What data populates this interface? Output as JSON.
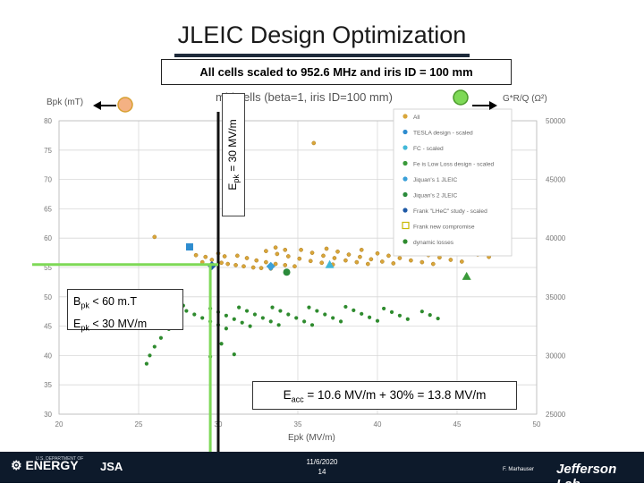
{
  "slide": {
    "title": "JLEIC Design Optimization",
    "subtitle": "All cells scaled to 952.6 MHz and iris ID = 100 mm",
    "epk_label_main": "E",
    "epk_label_sub": "pk",
    "epk_label_rest": " = 30 MV/m",
    "conditions": {
      "b_main": "B",
      "b_sub": "pk",
      "b_rest": " < 60 m.T",
      "e_main": "E",
      "e_sub": "pk",
      "e_rest": " < 30 MV/m"
    },
    "eacc": {
      "main": "E",
      "sub": "acc",
      "rest": " = 10.6 MV/m + 30% = 13.8 MV/m"
    },
    "footer": {
      "date": "11/6/2020",
      "page": "14",
      "author": "F. Marhauser",
      "doe_text": "ENERGY",
      "doe_dept": "U.S. DEPARTMENT OF",
      "jsa": "JSA",
      "jlab": "Jefferson Lab"
    },
    "colors": {
      "title_rule": "#1e2a3a",
      "footer_bg": "#0d1a2b",
      "green_line": "#7ed957",
      "black_line": "#111111"
    }
  },
  "chart_data": {
    "type": "scatter",
    "title": "mid cells (beta=1, iris ID=100 mm)",
    "ylabel_left": "Bpk (mT)",
    "ylabel_right": "G*R/Q (Ω²)",
    "xlabel": "Epk (MV/m)",
    "xlim": [
      20,
      50
    ],
    "ylim_left": [
      30,
      80
    ],
    "ylim_right": [
      25000,
      50000
    ],
    "x_ticks": [
      "20",
      "25",
      "30",
      "35",
      "40",
      "45",
      "50"
    ],
    "y_left_ticks": [
      "80",
      "75",
      "70",
      "65",
      "60",
      "55",
      "50",
      "45",
      "40",
      "35",
      "30"
    ],
    "y_right_ticks": [
      "50000",
      "45000",
      "40000",
      "35000",
      "30000",
      "25000"
    ],
    "legend": {
      "placement": "top-right",
      "entries": [
        "All",
        "TESLA design - scaled",
        "FC - scaled",
        "Fe is Low Loss design - scaled",
        "Jiquan's 1 JLEIC",
        "Jiquan's 2 JLEIC",
        "Frank \"LHeC\" study - scaled",
        "Frank new compromise",
        "dynamic losses"
      ]
    },
    "series": [
      {
        "name": "All",
        "color": "#d9a63a",
        "points": [
          [
            30.2,
            55.8
          ],
          [
            30.6,
            55.6
          ],
          [
            31.1,
            55.4
          ],
          [
            31.6,
            55.2
          ],
          [
            32.2,
            55.0
          ],
          [
            32.7,
            54.9
          ],
          [
            33.3,
            54.8
          ],
          [
            31.2,
            57.0
          ],
          [
            31.8,
            56.6
          ],
          [
            32.4,
            56.2
          ],
          [
            33.0,
            55.9
          ],
          [
            33.6,
            55.6
          ],
          [
            34.2,
            55.4
          ],
          [
            34.8,
            55.2
          ],
          [
            33.0,
            57.8
          ],
          [
            33.7,
            57.3
          ],
          [
            34.4,
            56.9
          ],
          [
            35.1,
            56.5
          ],
          [
            35.8,
            56.1
          ],
          [
            36.5,
            55.8
          ],
          [
            37.2,
            55.5
          ],
          [
            35.2,
            58.0
          ],
          [
            35.9,
            57.5
          ],
          [
            36.6,
            57.0
          ],
          [
            37.3,
            56.6
          ],
          [
            38.0,
            56.2
          ],
          [
            38.7,
            55.9
          ],
          [
            39.4,
            55.6
          ],
          [
            37.5,
            57.7
          ],
          [
            38.2,
            57.2
          ],
          [
            38.9,
            56.8
          ],
          [
            39.6,
            56.4
          ],
          [
            40.3,
            56.0
          ],
          [
            41.0,
            55.7
          ],
          [
            40.0,
            57.4
          ],
          [
            40.7,
            57.0
          ],
          [
            41.4,
            56.6
          ],
          [
            42.1,
            56.2
          ],
          [
            42.8,
            55.9
          ],
          [
            43.5,
            55.6
          ],
          [
            42.5,
            57.6
          ],
          [
            43.2,
            57.1
          ],
          [
            43.9,
            56.7
          ],
          [
            44.6,
            56.3
          ],
          [
            45.3,
            56.0
          ],
          [
            44.9,
            58.2
          ],
          [
            45.6,
            57.7
          ],
          [
            46.3,
            57.2
          ],
          [
            47.0,
            56.8
          ],
          [
            29.2,
            56.8
          ],
          [
            29.6,
            56.3
          ],
          [
            30.0,
            57.4
          ],
          [
            30.4,
            56.9
          ],
          [
            36.0,
            76.2
          ],
          [
            26.0,
            60.2
          ],
          [
            33.6,
            58.4
          ],
          [
            34.2,
            58.0
          ],
          [
            36.8,
            58.2
          ],
          [
            39.0,
            58.0
          ],
          [
            41.6,
            58.1
          ],
          [
            44.0,
            58.5
          ],
          [
            28.6,
            57.1
          ],
          [
            29.0,
            55.9
          ]
        ]
      },
      {
        "name": "TESLA design - scaled",
        "color": "#2e8ccf",
        "shape": "square",
        "points": [
          [
            28.2,
            58.5
          ]
        ]
      },
      {
        "name": "FC - scaled",
        "color": "#42b8d8",
        "shape": "triangle",
        "points": [
          [
            37.0,
            55.5
          ]
        ]
      },
      {
        "name": "Fe is Low Loss design - scaled",
        "color": "#3a9a3a",
        "shape": "triangle",
        "points": [
          [
            45.6,
            53.5
          ]
        ]
      },
      {
        "name": "Jiquan's 1 JLEIC",
        "color": "#3aa0d8",
        "shape": "diamond",
        "points": [
          [
            33.3,
            55.2
          ]
        ]
      },
      {
        "name": "Jiquan's 2 JLEIC",
        "color": "#2a8a3a",
        "shape": "circle",
        "points": [
          [
            34.3,
            54.2
          ]
        ]
      },
      {
        "name": "Frank \"LHeC\" study - scaled",
        "color": "#1f5aa6",
        "shape": "diamond",
        "points": [
          [
            29.6,
            55.3
          ]
        ]
      },
      {
        "name": "dynamic losses",
        "color": "#2e8b2e",
        "points": [
          [
            28.0,
            47.6
          ],
          [
            28.5,
            47.0
          ],
          [
            29.0,
            46.4
          ],
          [
            29.5,
            45.8
          ],
          [
            30.0,
            45.2
          ],
          [
            30.5,
            44.6
          ],
          [
            29.5,
            48.0
          ],
          [
            30.0,
            47.4
          ],
          [
            30.5,
            46.8
          ],
          [
            31.0,
            46.2
          ],
          [
            31.5,
            45.6
          ],
          [
            32.0,
            45.0
          ],
          [
            31.3,
            48.2
          ],
          [
            31.8,
            47.6
          ],
          [
            32.3,
            47.0
          ],
          [
            32.8,
            46.4
          ],
          [
            33.3,
            45.8
          ],
          [
            33.8,
            45.2
          ],
          [
            33.4,
            48.2
          ],
          [
            33.9,
            47.6
          ],
          [
            34.4,
            47.0
          ],
          [
            34.9,
            46.4
          ],
          [
            35.4,
            45.8
          ],
          [
            35.9,
            45.2
          ],
          [
            35.7,
            48.2
          ],
          [
            36.2,
            47.6
          ],
          [
            36.7,
            47.0
          ],
          [
            37.2,
            46.4
          ],
          [
            37.7,
            45.8
          ],
          [
            38.0,
            48.3
          ],
          [
            38.5,
            47.7
          ],
          [
            39.0,
            47.1
          ],
          [
            39.5,
            46.5
          ],
          [
            40.0,
            45.9
          ],
          [
            40.4,
            48.0
          ],
          [
            40.9,
            47.4
          ],
          [
            41.4,
            46.8
          ],
          [
            41.9,
            46.2
          ],
          [
            42.8,
            47.5
          ],
          [
            43.3,
            46.9
          ],
          [
            43.8,
            46.3
          ],
          [
            27.4,
            46.0
          ],
          [
            26.9,
            44.5
          ],
          [
            26.4,
            43.0
          ],
          [
            26.0,
            41.5
          ],
          [
            25.7,
            40.0
          ],
          [
            25.5,
            38.6
          ],
          [
            26.8,
            47.4
          ],
          [
            27.8,
            48.5
          ],
          [
            26.2,
            45.5
          ],
          [
            29.5,
            39.8
          ],
          [
            31.0,
            40.2
          ],
          [
            30.2,
            42.0
          ]
        ]
      }
    ],
    "reference_lines": [
      {
        "kind": "vertical",
        "x": 30,
        "color": "#111111"
      },
      {
        "kind": "vertical",
        "x": 29.5,
        "color": "#7ed957"
      },
      {
        "kind": "horizontal",
        "y": 55.5,
        "color": "#7ed957"
      }
    ]
  }
}
